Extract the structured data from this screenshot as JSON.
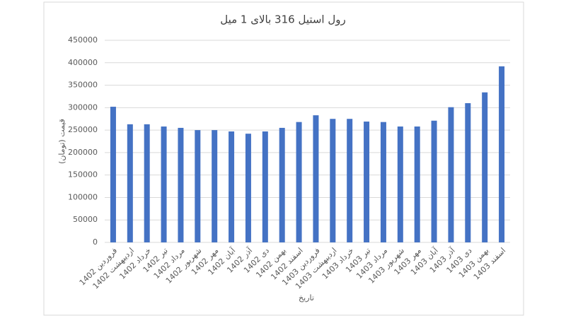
{
  "chart_data": {
    "type": "bar",
    "title": "رول استیل 316 بالای 1 میل",
    "x_label": "تاریخ",
    "y_label": "قیمت (تومان)",
    "categories": [
      "فروردین 1402",
      "اردیبهشت 1402",
      "خرداد 1402",
      "تیر 1402",
      "مرداد 1402",
      "شهریور 1402",
      "مهر 1402",
      "آبان 1402",
      "آذر 1402",
      "دی 1402",
      "بهمن 1402",
      "اسفند 1402",
      "فروردین 1403",
      "اردیبهشت 1403",
      "خرداد 1403",
      "تیر 1403",
      "مرداد 1403",
      "شهریور 1403",
      "مهر 1403",
      "آبان 1403",
      "آذر 1403",
      "دی 1403",
      "بهمن 1403",
      "اسفند 1403"
    ],
    "values": [
      302000,
      263000,
      263000,
      258000,
      255000,
      250000,
      250000,
      247000,
      242000,
      247000,
      255000,
      268000,
      283000,
      275000,
      275000,
      269000,
      268000,
      258000,
      258000,
      271000,
      301000,
      310000,
      334000,
      392000
    ],
    "color": "#4472c4",
    "ylim": [
      0,
      450000
    ],
    "yticks": [
      0,
      50000,
      100000,
      150000,
      200000,
      250000,
      300000,
      350000,
      400000,
      450000
    ],
    "grid": true
  }
}
